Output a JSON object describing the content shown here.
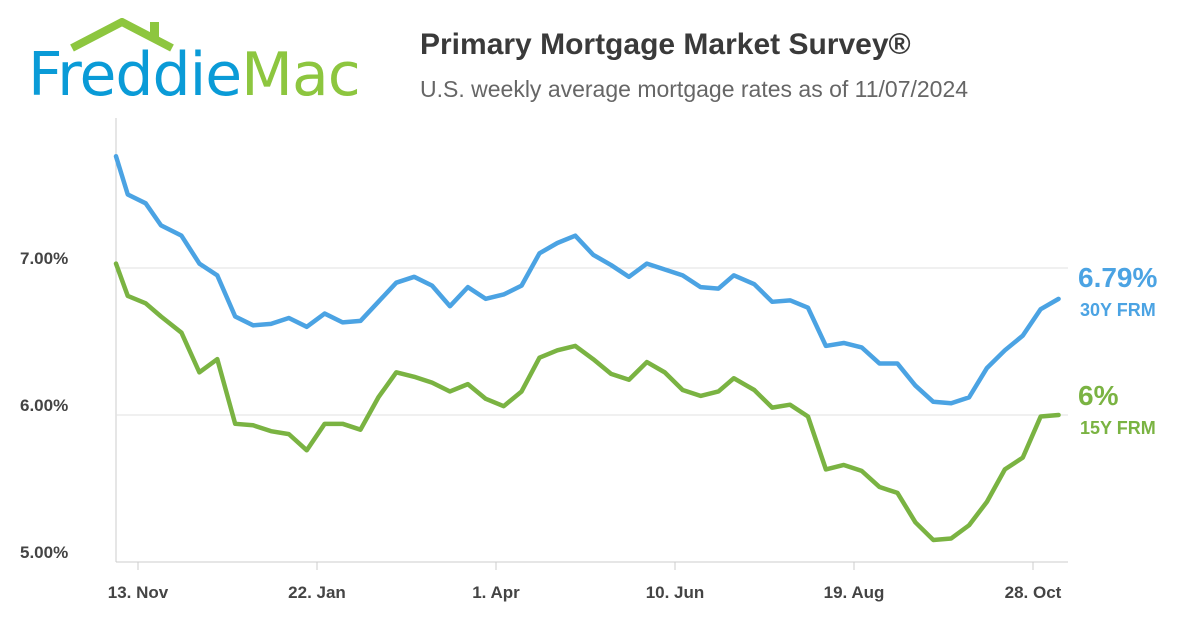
{
  "logo": {
    "text_part1": "Freddie",
    "text_part2": "Mac",
    "colors": {
      "blue": "#0a9bd7",
      "green": "#8dc63f"
    }
  },
  "header": {
    "title": "Primary Mortgage Market Survey®",
    "subtitle": "U.S. weekly average mortgage rates as of 11/07/2024"
  },
  "chart_data": {
    "type": "line",
    "title": "Primary Mortgage Market Survey®",
    "subtitle": "U.S. weekly average mortgage rates as of 11/07/2024",
    "ylim": [
      5.0,
      7.0
    ],
    "y_ticks": [
      "5.00%",
      "6.00%",
      "7.00%"
    ],
    "y_tick_values": [
      5,
      6,
      7
    ],
    "x_ticks": [
      "13. Nov",
      "22. Jan",
      "1. Apr",
      "10. Jun",
      "19. Aug",
      "28. Oct"
    ],
    "x_tick_dates": [
      "2023-11-13",
      "2024-01-22",
      "2024-04-01",
      "2024-06-10",
      "2024-08-19",
      "2024-10-28"
    ],
    "grid": "horizontal",
    "x": [
      "2023-11-02",
      "2023-11-09",
      "2023-11-16",
      "2023-11-22",
      "2023-11-30",
      "2023-12-07",
      "2023-12-14",
      "2023-12-21",
      "2023-12-28",
      "2024-01-04",
      "2024-01-11",
      "2024-01-18",
      "2024-01-25",
      "2024-02-01",
      "2024-02-08",
      "2024-02-15",
      "2024-02-22",
      "2024-02-29",
      "2024-03-07",
      "2024-03-14",
      "2024-03-21",
      "2024-03-28",
      "2024-04-04",
      "2024-04-11",
      "2024-04-18",
      "2024-04-25",
      "2024-05-02",
      "2024-05-09",
      "2024-05-16",
      "2024-05-23",
      "2024-05-30",
      "2024-06-06",
      "2024-06-13",
      "2024-06-20",
      "2024-06-27",
      "2024-07-03",
      "2024-07-11",
      "2024-07-18",
      "2024-07-25",
      "2024-08-01",
      "2024-08-08",
      "2024-08-15",
      "2024-08-22",
      "2024-08-29",
      "2024-09-05",
      "2024-09-12",
      "2024-09-19",
      "2024-09-26",
      "2024-10-03",
      "2024-10-10",
      "2024-10-17",
      "2024-10-24",
      "2024-10-31",
      "2024-11-07"
    ],
    "series": [
      {
        "name": "30Y FRM",
        "end_label": "6.79%",
        "color": "#4ba3e3",
        "values": [
          7.76,
          7.5,
          7.44,
          7.29,
          7.22,
          7.03,
          6.95,
          6.67,
          6.61,
          6.62,
          6.66,
          6.6,
          6.69,
          6.63,
          6.64,
          6.77,
          6.9,
          6.94,
          6.88,
          6.74,
          6.87,
          6.79,
          6.82,
          6.88,
          7.1,
          7.17,
          7.22,
          7.09,
          7.02,
          6.94,
          7.03,
          6.99,
          6.95,
          6.87,
          6.86,
          6.95,
          6.89,
          6.77,
          6.78,
          6.73,
          6.47,
          6.49,
          6.46,
          6.35,
          6.35,
          6.2,
          6.09,
          6.08,
          6.12,
          6.32,
          6.44,
          6.54,
          6.72,
          6.79
        ]
      },
      {
        "name": "15Y FRM",
        "end_label": "6%",
        "color": "#7ab342",
        "values": [
          7.03,
          6.81,
          6.76,
          6.67,
          6.56,
          6.29,
          6.38,
          5.94,
          5.93,
          5.89,
          5.87,
          5.76,
          5.94,
          5.94,
          5.9,
          6.12,
          6.29,
          6.26,
          6.22,
          6.16,
          6.21,
          6.11,
          6.06,
          6.16,
          6.39,
          6.44,
          6.47,
          6.38,
          6.28,
          6.24,
          6.36,
          6.29,
          6.17,
          6.13,
          6.16,
          6.25,
          6.17,
          6.05,
          6.07,
          5.99,
          5.63,
          5.66,
          5.62,
          5.51,
          5.47,
          5.27,
          5.15,
          5.16,
          5.25,
          5.41,
          5.63,
          5.71,
          5.99,
          6.0
        ]
      }
    ]
  }
}
